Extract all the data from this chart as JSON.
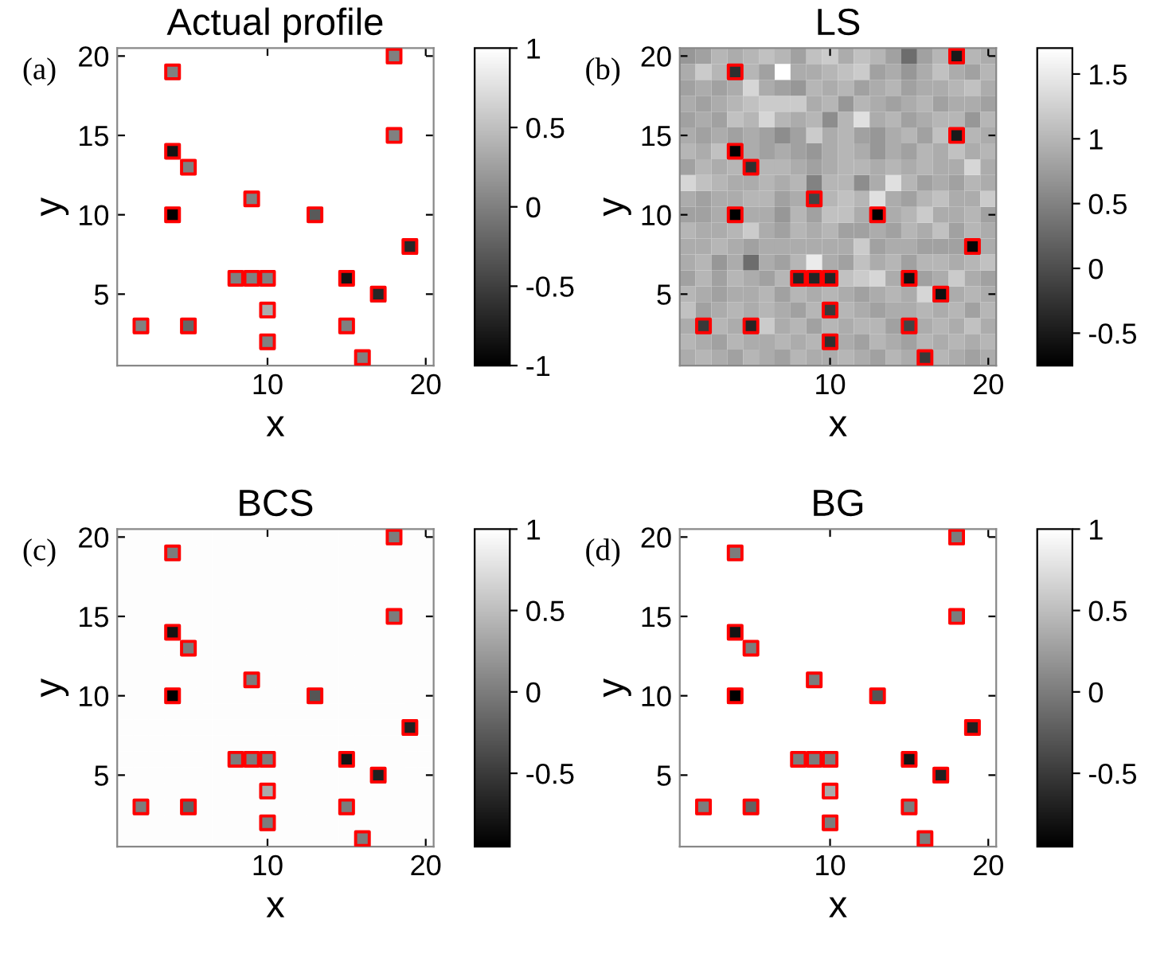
{
  "chart_data": [
    {
      "type": "heatmap",
      "title": "Actual profile",
      "xlabel": "x",
      "ylabel": "y",
      "annotations": [
        "(a)"
      ],
      "x": [
        1,
        2,
        3,
        4,
        5,
        6,
        7,
        8,
        9,
        10,
        11,
        12,
        13,
        14,
        15,
        16,
        17,
        18,
        19,
        20
      ],
      "xlim": [
        0.5,
        20.5
      ],
      "xticks": [
        10,
        20
      ],
      "ylim": [
        0.5,
        20.5
      ],
      "yticks": [
        5,
        10,
        15,
        20
      ],
      "clim": [
        -1,
        1
      ],
      "cticks": [
        -1,
        -0.5,
        0,
        0.5,
        1
      ],
      "cells": [
        [
          1,
          1,
          1,
          1,
          1,
          1,
          1,
          1,
          1,
          1,
          1,
          1,
          1,
          1,
          1,
          1,
          1,
          0,
          1,
          1
        ],
        [
          1,
          1,
          1,
          0,
          1,
          1,
          1,
          1,
          1,
          1,
          1,
          1,
          1,
          1,
          1,
          1,
          1,
          1,
          1,
          1
        ],
        [
          1,
          1,
          1,
          1,
          1,
          1,
          1,
          1,
          1,
          1,
          1,
          1,
          1,
          1,
          1,
          1,
          1,
          1,
          1,
          1
        ],
        [
          1,
          1,
          1,
          1,
          1,
          1,
          1,
          1,
          1,
          1,
          1,
          1,
          1,
          1,
          1,
          1,
          1,
          1,
          1,
          1
        ],
        [
          1,
          1,
          1,
          1,
          1,
          1,
          1,
          1,
          1,
          1,
          1,
          1,
          1,
          1,
          1,
          1,
          1,
          1,
          1,
          1
        ],
        [
          1,
          1,
          1,
          1,
          1,
          1,
          1,
          1,
          1,
          1,
          1,
          1,
          1,
          1,
          1,
          1,
          1,
          0,
          1,
          1
        ],
        [
          1,
          1,
          1,
          -0.85,
          1,
          1,
          1,
          1,
          1,
          1,
          1,
          1,
          1,
          1,
          1,
          1,
          1,
          1,
          1,
          1
        ],
        [
          1,
          1,
          1,
          1,
          0,
          1,
          1,
          1,
          1,
          1,
          1,
          1,
          1,
          1,
          1,
          1,
          1,
          1,
          1,
          1
        ],
        [
          1,
          1,
          1,
          1,
          1,
          1,
          1,
          1,
          1,
          1,
          1,
          1,
          1,
          1,
          1,
          1,
          1,
          1,
          1,
          1
        ],
        [
          1,
          1,
          1,
          1,
          1,
          1,
          1,
          1,
          0,
          1,
          1,
          1,
          1,
          1,
          1,
          1,
          1,
          1,
          1,
          1
        ],
        [
          1,
          1,
          1,
          -1,
          1,
          1,
          1,
          1,
          1,
          1,
          1,
          1,
          -0.3,
          1,
          1,
          1,
          1,
          1,
          1,
          1
        ],
        [
          1,
          1,
          1,
          1,
          1,
          1,
          1,
          1,
          1,
          1,
          1,
          1,
          1,
          1,
          1,
          1,
          1,
          1,
          1,
          1
        ],
        [
          1,
          1,
          1,
          1,
          1,
          1,
          1,
          1,
          1,
          1,
          1,
          1,
          1,
          1,
          1,
          1,
          1,
          1,
          -0.7,
          1
        ],
        [
          1,
          1,
          1,
          1,
          1,
          1,
          1,
          1,
          1,
          1,
          1,
          1,
          1,
          1,
          1,
          1,
          1,
          1,
          1,
          1
        ],
        [
          1,
          1,
          1,
          1,
          1,
          1,
          1,
          0,
          0,
          0,
          1,
          1,
          1,
          1,
          -0.85,
          1,
          1,
          1,
          1,
          1
        ],
        [
          1,
          1,
          1,
          1,
          1,
          1,
          1,
          1,
          1,
          1,
          1,
          1,
          1,
          1,
          1,
          1,
          -0.7,
          1,
          1,
          1
        ],
        [
          1,
          1,
          1,
          1,
          1,
          1,
          1,
          1,
          1,
          0.35,
          1,
          1,
          1,
          1,
          1,
          1,
          1,
          1,
          1,
          1
        ],
        [
          1,
          0,
          1,
          1,
          -0.2,
          1,
          1,
          1,
          1,
          1,
          1,
          1,
          1,
          1,
          0,
          1,
          1,
          1,
          1,
          1
        ],
        [
          1,
          1,
          1,
          1,
          1,
          1,
          1,
          1,
          1,
          0,
          1,
          1,
          1,
          1,
          1,
          1,
          1,
          1,
          1,
          1
        ],
        [
          1,
          1,
          1,
          1,
          1,
          1,
          1,
          1,
          1,
          1,
          1,
          1,
          1,
          1,
          1,
          0,
          1,
          1,
          1,
          1
        ]
      ],
      "series": [
        {
          "type": "scatter",
          "marker": "square",
          "color": "#ff0000",
          "x": [
            18,
            4,
            18,
            4,
            5,
            9,
            4,
            13,
            19,
            8,
            9,
            10,
            15,
            17,
            10,
            2,
            5,
            15,
            10,
            16
          ],
          "values": [
            20,
            19,
            15,
            14,
            13,
            11,
            10,
            10,
            8,
            6,
            6,
            6,
            6,
            5,
            4,
            3,
            3,
            3,
            2,
            1
          ]
        }
      ]
    },
    {
      "type": "heatmap",
      "title": "LS",
      "xlabel": "x",
      "ylabel": "y",
      "annotations": [
        "(b)"
      ],
      "x": [
        1,
        2,
        3,
        4,
        5,
        6,
        7,
        8,
        9,
        10,
        11,
        12,
        13,
        14,
        15,
        16,
        17,
        18,
        19,
        20
      ],
      "xlim": [
        0.5,
        20.5
      ],
      "xticks": [
        10,
        20
      ],
      "ylim": [
        0.5,
        20.5
      ],
      "yticks": [
        5,
        10,
        15,
        20
      ],
      "clim": [
        -0.75,
        1.7
      ],
      "cticks": [
        -0.5,
        0,
        0.5,
        1,
        1.5
      ],
      "cells": [
        [
          0.7,
          0.8,
          1.0,
          0.9,
          1.0,
          1.1,
          1.0,
          0.8,
          1.1,
          1.2,
          0.9,
          1.1,
          1.0,
          0.8,
          0.3,
          0.8,
          1.0,
          -0.5,
          1.0,
          0.9
        ],
        [
          0.9,
          1.2,
          1.0,
          -0.3,
          1.0,
          0.8,
          1.7,
          0.9,
          0.9,
          1.0,
          1.1,
          1.2,
          0.8,
          0.9,
          0.7,
          0.9,
          1.1,
          0.9,
          0.8,
          1.0
        ],
        [
          0.8,
          0.9,
          0.8,
          0.9,
          1.3,
          0.9,
          0.8,
          0.7,
          1.0,
          0.9,
          1.0,
          0.8,
          0.9,
          1.0,
          0.8,
          0.9,
          0.9,
          1.0,
          1.1,
          0.9
        ],
        [
          0.9,
          0.8,
          0.9,
          1.0,
          1.1,
          1.2,
          1.2,
          1.2,
          0.9,
          1.0,
          0.7,
          1.0,
          0.9,
          0.8,
          0.9,
          1.0,
          0.8,
          0.9,
          0.9,
          0.8
        ],
        [
          0.8,
          0.9,
          0.8,
          1.1,
          1.0,
          1.3,
          1.0,
          0.9,
          1.0,
          0.6,
          1.0,
          1.4,
          0.9,
          1.0,
          0.8,
          0.9,
          1.0,
          1.0,
          0.7,
          1.0
        ],
        [
          0.9,
          0.8,
          0.9,
          0.8,
          0.9,
          0.8,
          0.6,
          0.8,
          1.2,
          0.9,
          1.0,
          0.8,
          0.7,
          0.9,
          1.0,
          0.8,
          1.1,
          -0.5,
          1.0,
          0.9
        ],
        [
          1.0,
          0.9,
          1.1,
          -0.75,
          0.9,
          0.8,
          0.9,
          0.8,
          0.7,
          0.9,
          1.0,
          0.9,
          0.7,
          0.9,
          0.8,
          1.0,
          0.9,
          1.1,
          0.9,
          1.0
        ],
        [
          0.8,
          1.0,
          0.9,
          1.0,
          -0.3,
          1.0,
          1.0,
          0.9,
          0.8,
          0.9,
          1.0,
          1.0,
          0.9,
          1.0,
          0.9,
          1.0,
          0.9,
          0.9,
          1.3,
          0.9
        ],
        [
          1.3,
          1.1,
          1.0,
          0.9,
          0.9,
          1.0,
          0.9,
          1.0,
          0.5,
          1.0,
          1.0,
          0.6,
          0.9,
          1.4,
          1.0,
          0.8,
          0.9,
          0.8,
          1.0,
          0.9
        ],
        [
          0.9,
          0.8,
          0.9,
          0.9,
          1.0,
          1.0,
          0.8,
          0.9,
          -0.1,
          1.0,
          1.1,
          1.0,
          1.4,
          0.9,
          0.8,
          1.0,
          1.1,
          0.9,
          0.9,
          1.2
        ],
        [
          0.8,
          0.8,
          0.9,
          -0.75,
          0.9,
          0.9,
          0.7,
          1.0,
          0.8,
          1.1,
          1.1,
          0.9,
          -0.75,
          0.9,
          1.0,
          1.2,
          0.9,
          0.9,
          1.0,
          0.8
        ],
        [
          1.0,
          0.9,
          0.9,
          1.0,
          1.2,
          0.9,
          0.8,
          1.0,
          0.9,
          1.0,
          0.8,
          0.8,
          0.9,
          0.8,
          1.0,
          0.9,
          1.1,
          0.8,
          1.0,
          0.9
        ],
        [
          0.9,
          0.9,
          1.0,
          0.9,
          0.8,
          0.9,
          0.9,
          0.9,
          0.9,
          0.9,
          0.9,
          1.2,
          0.8,
          0.9,
          0.9,
          0.8,
          0.8,
          0.8,
          -0.7,
          0.9
        ],
        [
          0.9,
          1.0,
          0.7,
          0.9,
          0.3,
          0.9,
          0.8,
          1.0,
          1.5,
          0.9,
          0.8,
          1.1,
          0.9,
          1.0,
          0.8,
          1.0,
          1.0,
          0.9,
          1.0,
          1.1
        ],
        [
          0.8,
          1.0,
          0.8,
          1.0,
          0.9,
          0.8,
          1.0,
          -0.4,
          -0.4,
          -0.4,
          1.1,
          1.2,
          1.3,
          0.9,
          -0.6,
          0.8,
          0.9,
          1.2,
          0.9,
          0.8
        ],
        [
          1.0,
          0.9,
          0.8,
          0.9,
          0.9,
          1.0,
          0.8,
          1.0,
          0.9,
          1.0,
          0.9,
          0.8,
          0.9,
          1.0,
          0.9,
          1.3,
          -0.6,
          0.9,
          1.0,
          0.9
        ],
        [
          1.1,
          0.8,
          0.9,
          1.0,
          0.9,
          1.0,
          0.9,
          0.8,
          1.0,
          -0.2,
          1.0,
          0.9,
          0.8,
          0.9,
          0.9,
          1.0,
          0.9,
          1.0,
          0.8,
          1.0
        ],
        [
          0.9,
          -0.2,
          1.0,
          0.9,
          -0.4,
          1.2,
          0.9,
          1.0,
          0.8,
          1.0,
          0.9,
          1.0,
          1.0,
          0.8,
          -0.1,
          0.9,
          1.0,
          0.9,
          1.1,
          0.9
        ],
        [
          1.0,
          0.9,
          0.8,
          1.0,
          0.9,
          0.9,
          1.0,
          0.9,
          1.0,
          -0.3,
          0.9,
          0.8,
          1.0,
          0.9,
          0.8,
          1.0,
          0.9,
          1.0,
          0.9,
          1.0
        ],
        [
          0.9,
          1.0,
          0.9,
          0.8,
          1.0,
          0.9,
          0.8,
          1.0,
          0.9,
          0.9,
          1.0,
          0.9,
          0.8,
          1.0,
          0.9,
          -0.2,
          1.0,
          0.9,
          0.8,
          0.9
        ]
      ],
      "series": [
        {
          "type": "scatter",
          "marker": "square",
          "color": "#ff0000",
          "x": [
            18,
            4,
            18,
            4,
            5,
            9,
            4,
            13,
            19,
            8,
            9,
            10,
            15,
            17,
            10,
            2,
            5,
            15,
            10,
            16
          ],
          "values": [
            20,
            19,
            15,
            14,
            13,
            11,
            10,
            10,
            8,
            6,
            6,
            6,
            6,
            5,
            4,
            3,
            3,
            3,
            2,
            1
          ]
        }
      ]
    },
    {
      "type": "heatmap",
      "title": "BCS",
      "xlabel": "x",
      "ylabel": "y",
      "annotations": [
        "(c)"
      ],
      "x": [
        1,
        2,
        3,
        4,
        5,
        6,
        7,
        8,
        9,
        10,
        11,
        12,
        13,
        14,
        15,
        16,
        17,
        18,
        19,
        20
      ],
      "xlim": [
        0.5,
        20.5
      ],
      "xticks": [
        10,
        20
      ],
      "ylim": [
        0.5,
        20.5
      ],
      "yticks": [
        5,
        10,
        15,
        20
      ],
      "clim": [
        -0.95,
        1
      ],
      "cticks": [
        -0.5,
        0,
        0.5,
        1
      ],
      "cells": [
        [
          0.98,
          0.98,
          0.98,
          0.98,
          0.98,
          0.98,
          0.98,
          0.98,
          0.98,
          0.98,
          0.98,
          0.98,
          0.98,
          0.98,
          0.98,
          0.98,
          0.98,
          0,
          0.98,
          0.98
        ],
        [
          0.98,
          0.98,
          0.98,
          0,
          0.98,
          0.98,
          0.98,
          0.98,
          0.98,
          0.98,
          0.98,
          0.98,
          0.98,
          0.98,
          0.98,
          0.98,
          0.98,
          0.98,
          0.98,
          0.98
        ],
        [
          0.98,
          0.98,
          0.98,
          0.98,
          0.98,
          0.98,
          0.98,
          0.98,
          0.98,
          0.98,
          0.98,
          0.98,
          0.98,
          0.98,
          0.98,
          0.98,
          0.98,
          0.98,
          0.98,
          0.98
        ],
        [
          0.98,
          0.98,
          0.98,
          0.98,
          0.98,
          0.98,
          0.98,
          0.98,
          0.98,
          0.98,
          0.98,
          0.98,
          0.98,
          0.98,
          0.98,
          0.98,
          0.98,
          0.98,
          0.98,
          0.98
        ],
        [
          0.98,
          0.98,
          0.98,
          0.98,
          0.98,
          0.98,
          0.98,
          0.98,
          0.98,
          0.98,
          0.98,
          0.98,
          0.98,
          0.98,
          0.98,
          0.98,
          0.98,
          0.98,
          0.98,
          0.98
        ],
        [
          0.98,
          0.98,
          0.98,
          0.98,
          0.98,
          0.98,
          0.98,
          0.98,
          0.98,
          0.98,
          0.98,
          0.98,
          0.98,
          0.98,
          0.98,
          0.98,
          0.98,
          0,
          0.98,
          0.98
        ],
        [
          0.98,
          0.98,
          0.98,
          -0.8,
          0.98,
          0.98,
          0.98,
          0.98,
          0.98,
          0.98,
          0.98,
          0.98,
          0.98,
          0.98,
          0.98,
          0.98,
          0.98,
          0.98,
          0.98,
          0.98
        ],
        [
          0.98,
          0.98,
          0.98,
          0.98,
          0,
          0.98,
          0.98,
          0.98,
          0.98,
          0.98,
          0.98,
          0.98,
          0.98,
          0.98,
          0.98,
          0.98,
          0.98,
          0.98,
          0.98,
          0.98
        ],
        [
          0.98,
          0.98,
          0.98,
          0.98,
          0.98,
          0.98,
          0.98,
          0.98,
          0.98,
          0.98,
          0.98,
          0.98,
          0.98,
          0.98,
          0.98,
          0.98,
          0.98,
          0.98,
          0.98,
          0.98
        ],
        [
          0.98,
          0.98,
          0.98,
          0.98,
          0.98,
          0.98,
          0.98,
          0.98,
          0,
          0.98,
          0.98,
          0.98,
          0.98,
          0.98,
          0.98,
          0.98,
          0.98,
          0.98,
          0.98,
          0.98
        ],
        [
          0.98,
          0.98,
          0.98,
          -0.95,
          0.98,
          0.98,
          0.98,
          0.98,
          0.98,
          0.98,
          0.98,
          0.98,
          -0.3,
          0.98,
          0.98,
          0.98,
          0.98,
          0.98,
          0.98,
          0.98
        ],
        [
          0.98,
          0.98,
          0.98,
          0.98,
          0.98,
          0.98,
          0.98,
          0.98,
          0.98,
          0.98,
          0.98,
          0.98,
          0.98,
          0.98,
          0.98,
          0.98,
          0.98,
          0.98,
          0.98,
          0.98
        ],
        [
          0.98,
          0.98,
          0.98,
          0.98,
          0.98,
          0.98,
          0.98,
          0.98,
          0.98,
          0.98,
          0.98,
          0.98,
          0.98,
          0.98,
          0.98,
          0.98,
          0.98,
          0.98,
          -0.7,
          0.98
        ],
        [
          0.98,
          0.98,
          0.98,
          0.98,
          0.98,
          0.98,
          0.98,
          0.98,
          0.98,
          0.98,
          0.98,
          0.98,
          0.98,
          0.98,
          0.98,
          0.98,
          0.98,
          0.98,
          0.98,
          0.98
        ],
        [
          0.98,
          0.98,
          0.98,
          0.98,
          0.98,
          0.98,
          0.98,
          0,
          0,
          0,
          0.98,
          0.98,
          0.98,
          0.98,
          -0.8,
          0.98,
          0.98,
          0.98,
          0.98,
          0.98
        ],
        [
          0.98,
          0.98,
          0.98,
          0.98,
          0.98,
          0.98,
          0.98,
          0.98,
          0.98,
          0.98,
          0.98,
          0.98,
          0.98,
          0.98,
          0.98,
          0.98,
          -0.7,
          0.98,
          0.98,
          0.98
        ],
        [
          0.98,
          0.98,
          0.98,
          0.98,
          0.98,
          0.98,
          0.98,
          0.98,
          0.98,
          0.35,
          0.98,
          0.98,
          0.98,
          0.98,
          0.98,
          0.98,
          0.98,
          0.98,
          0.98,
          0.98
        ],
        [
          0.98,
          0,
          0.98,
          0.98,
          -0.2,
          0.98,
          0.98,
          0.98,
          0.98,
          0.98,
          0.98,
          0.98,
          0.98,
          0.98,
          0,
          0.98,
          0.98,
          0.98,
          0.98,
          0.98
        ],
        [
          0.98,
          0.98,
          0.98,
          0.98,
          0.98,
          0.98,
          0.98,
          0.98,
          0.98,
          0,
          0.98,
          0.98,
          0.98,
          0.98,
          0.98,
          0.98,
          0.98,
          0.98,
          0.98,
          0.98
        ],
        [
          0.98,
          0.98,
          0.98,
          0.98,
          0.98,
          0.98,
          0.98,
          0.98,
          0.98,
          0.98,
          0.98,
          0.98,
          0.98,
          0.98,
          0.98,
          0,
          0.98,
          0.98,
          0.98,
          0.98
        ]
      ],
      "series": [
        {
          "type": "scatter",
          "marker": "square",
          "color": "#ff0000",
          "x": [
            18,
            4,
            18,
            4,
            5,
            9,
            4,
            13,
            19,
            8,
            9,
            10,
            15,
            17,
            10,
            2,
            5,
            15,
            10,
            16
          ],
          "values": [
            20,
            19,
            15,
            14,
            13,
            11,
            10,
            10,
            8,
            6,
            6,
            6,
            6,
            5,
            4,
            3,
            3,
            3,
            2,
            1
          ]
        }
      ]
    },
    {
      "type": "heatmap",
      "title": "BG",
      "xlabel": "x",
      "ylabel": "y",
      "annotations": [
        "(d)"
      ],
      "x": [
        1,
        2,
        3,
        4,
        5,
        6,
        7,
        8,
        9,
        10,
        11,
        12,
        13,
        14,
        15,
        16,
        17,
        18,
        19,
        20
      ],
      "xlim": [
        0.5,
        20.5
      ],
      "xticks": [
        10,
        20
      ],
      "ylim": [
        0.5,
        20.5
      ],
      "yticks": [
        5,
        10,
        15,
        20
      ],
      "clim": [
        -0.95,
        1
      ],
      "cticks": [
        -0.5,
        0,
        0.5,
        1
      ],
      "cells": [
        [
          1,
          1,
          1,
          1,
          1,
          1,
          1,
          1,
          1,
          1,
          1,
          1,
          1,
          1,
          1,
          1,
          1,
          0,
          1,
          1
        ],
        [
          1,
          1,
          1,
          0,
          1,
          1,
          1,
          1,
          1,
          1,
          1,
          1,
          1,
          1,
          1,
          1,
          1,
          1,
          1,
          1
        ],
        [
          1,
          1,
          1,
          1,
          1,
          1,
          1,
          1,
          1,
          1,
          1,
          1,
          1,
          1,
          1,
          1,
          1,
          1,
          1,
          1
        ],
        [
          1,
          1,
          1,
          1,
          1,
          1,
          1,
          1,
          1,
          1,
          1,
          1,
          1,
          1,
          1,
          1,
          1,
          1,
          1,
          1
        ],
        [
          1,
          1,
          1,
          1,
          1,
          1,
          1,
          1,
          1,
          1,
          1,
          1,
          1,
          1,
          1,
          1,
          1,
          1,
          1,
          1
        ],
        [
          1,
          1,
          1,
          1,
          1,
          1,
          1,
          1,
          1,
          1,
          1,
          1,
          1,
          1,
          1,
          1,
          1,
          0,
          1,
          1
        ],
        [
          1,
          1,
          1,
          -0.8,
          1,
          1,
          1,
          1,
          1,
          1,
          1,
          1,
          1,
          1,
          1,
          1,
          1,
          1,
          1,
          1
        ],
        [
          1,
          1,
          1,
          1,
          0,
          1,
          1,
          1,
          1,
          1,
          1,
          1,
          1,
          1,
          1,
          1,
          1,
          1,
          1,
          1
        ],
        [
          1,
          1,
          1,
          1,
          1,
          1,
          1,
          1,
          1,
          1,
          1,
          1,
          1,
          1,
          1,
          1,
          1,
          1,
          1,
          1
        ],
        [
          1,
          1,
          1,
          1,
          1,
          1,
          1,
          1,
          0,
          1,
          1,
          1,
          1,
          1,
          1,
          1,
          1,
          1,
          1,
          1
        ],
        [
          1,
          1,
          1,
          -0.95,
          1,
          1,
          1,
          1,
          1,
          1,
          1,
          1,
          -0.3,
          1,
          1,
          1,
          1,
          1,
          1,
          1
        ],
        [
          1,
          1,
          1,
          1,
          1,
          1,
          1,
          1,
          1,
          1,
          1,
          1,
          1,
          1,
          1,
          1,
          1,
          1,
          1,
          1
        ],
        [
          1,
          1,
          1,
          1,
          1,
          1,
          1,
          1,
          1,
          1,
          1,
          1,
          1,
          1,
          1,
          1,
          1,
          1,
          -0.7,
          1
        ],
        [
          1,
          1,
          1,
          1,
          1,
          1,
          1,
          1,
          1,
          1,
          1,
          1,
          1,
          1,
          1,
          1,
          1,
          1,
          1,
          1
        ],
        [
          1,
          1,
          1,
          1,
          1,
          1,
          1,
          0,
          0,
          0,
          1,
          1,
          1,
          1,
          -0.8,
          1,
          1,
          1,
          1,
          1
        ],
        [
          1,
          1,
          1,
          1,
          1,
          1,
          1,
          1,
          1,
          1,
          1,
          1,
          1,
          1,
          1,
          1,
          -0.7,
          1,
          1,
          1
        ],
        [
          1,
          1,
          1,
          1,
          1,
          1,
          1,
          1,
          1,
          0.35,
          1,
          1,
          1,
          1,
          1,
          1,
          1,
          1,
          1,
          1
        ],
        [
          1,
          0,
          1,
          1,
          -0.2,
          1,
          1,
          1,
          1,
          1,
          1,
          1,
          1,
          1,
          0,
          1,
          1,
          1,
          1,
          1
        ],
        [
          1,
          1,
          1,
          1,
          1,
          1,
          1,
          1,
          1,
          0,
          1,
          1,
          1,
          1,
          1,
          1,
          1,
          1,
          1,
          1
        ],
        [
          1,
          1,
          1,
          1,
          1,
          1,
          1,
          1,
          1,
          1,
          1,
          1,
          1,
          1,
          1,
          0,
          1,
          1,
          1,
          1
        ]
      ],
      "series": [
        {
          "type": "scatter",
          "marker": "square",
          "color": "#ff0000",
          "x": [
            18,
            4,
            18,
            4,
            5,
            9,
            4,
            13,
            19,
            8,
            9,
            10,
            15,
            17,
            10,
            2,
            5,
            15,
            10,
            16
          ],
          "values": [
            20,
            19,
            15,
            14,
            13,
            11,
            10,
            10,
            8,
            6,
            6,
            6,
            6,
            5,
            4,
            3,
            3,
            3,
            2,
            1
          ]
        }
      ]
    }
  ]
}
